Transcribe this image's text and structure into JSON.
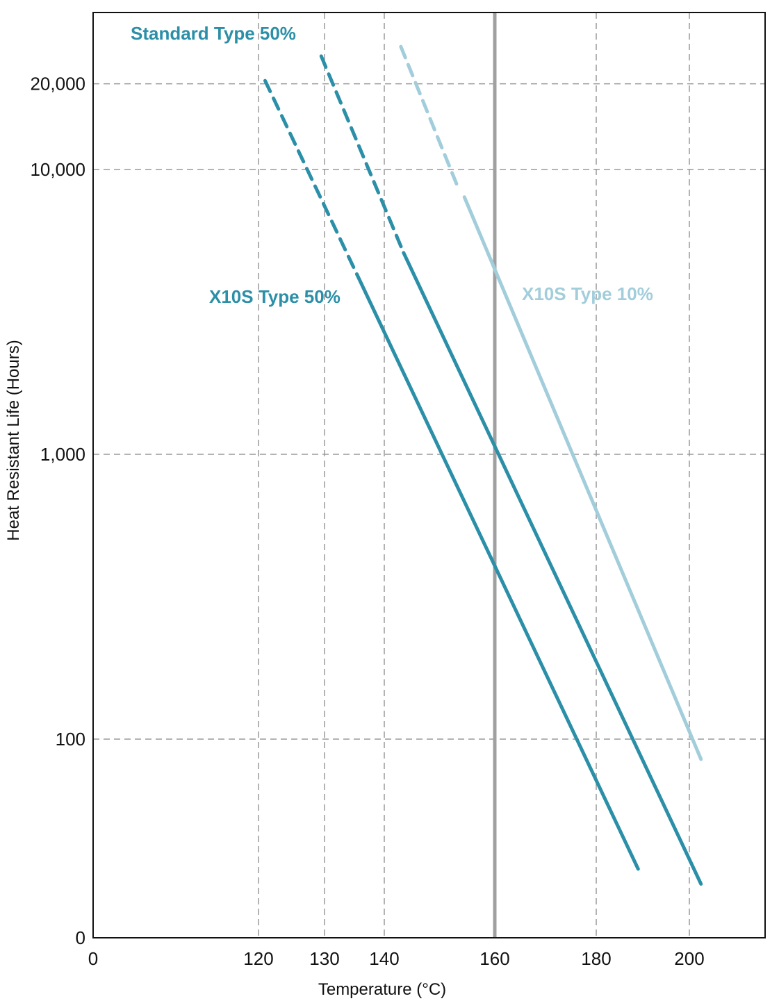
{
  "chart_data": {
    "type": "line",
    "title": "",
    "xlabel": "Temperature (°C)",
    "ylabel": "Heat Resistant Life (Hours)",
    "x_ticks": [
      {
        "value": 0,
        "label": "0"
      },
      {
        "value": 120,
        "label": "120"
      },
      {
        "value": 130,
        "label": "130"
      },
      {
        "value": 140,
        "label": "140"
      },
      {
        "value": 160,
        "label": "160"
      },
      {
        "value": 180,
        "label": "180"
      },
      {
        "value": 200,
        "label": "200"
      }
    ],
    "y_ticks": [
      {
        "value": 0,
        "label": "0"
      },
      {
        "value": 100,
        "label": "100"
      },
      {
        "value": 1000,
        "label": "1,000"
      },
      {
        "value": 10000,
        "label": "10,000"
      },
      {
        "value": 20000,
        "label": "20,000"
      }
    ],
    "y_scale": "log",
    "grid": true,
    "reference_line": {
      "x": 160,
      "color": "#a0a0a0"
    },
    "series": [
      {
        "name": "X10S Type 50%",
        "color": "#2b8fa8",
        "dashed_segment": [
          {
            "x": 121,
            "y": 20500
          },
          {
            "x": 135.5,
            "y": 4250
          }
        ],
        "solid_segment": [
          {
            "x": 135.5,
            "y": 4250
          },
          {
            "x": 189,
            "y": 35
          }
        ]
      },
      {
        "name": "Standard Type 50%",
        "color": "#2b8fa8",
        "dashed_segment": [
          {
            "x": 129.5,
            "y": 25000
          },
          {
            "x": 143.5,
            "y": 5100
          }
        ],
        "solid_segment": [
          {
            "x": 143.5,
            "y": 5100
          },
          {
            "x": 202.5,
            "y": 31
          }
        ]
      },
      {
        "name": "X10S Type 10%",
        "color": "#a2cddb",
        "dashed_segment": [
          {
            "x": 143,
            "y": 27000
          },
          {
            "x": 153.5,
            "y": 8500
          }
        ],
        "solid_segment": [
          {
            "x": 154.5,
            "y": 8000
          },
          {
            "x": 202.5,
            "y": 85
          }
        ]
      }
    ]
  }
}
